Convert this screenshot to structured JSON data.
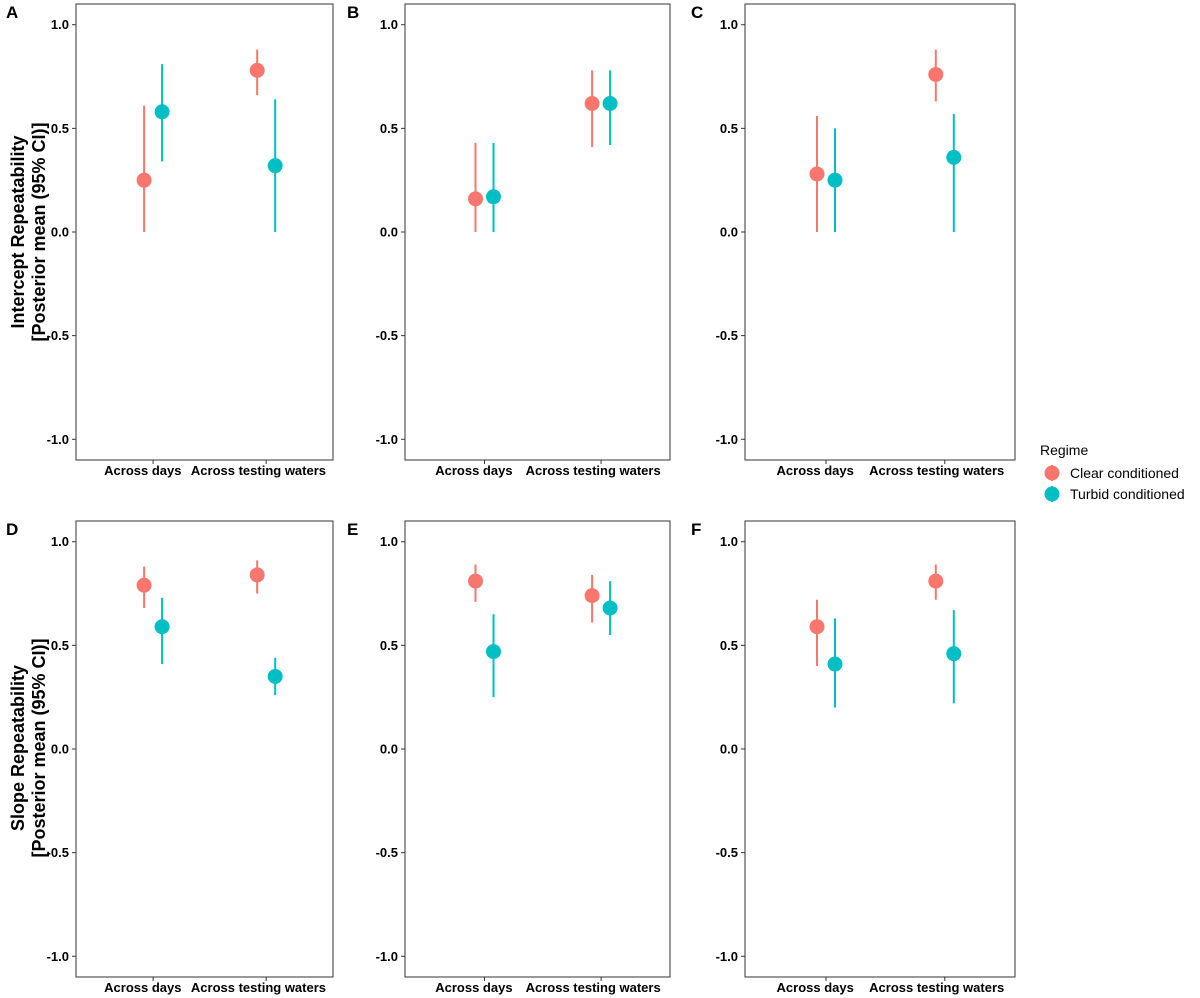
{
  "legend": {
    "title": "Regime",
    "entries": [
      {
        "name": "Clear conditioned",
        "color": "#F8766D"
      },
      {
        "name": "Turbid conditioned",
        "color": "#00BFC4"
      }
    ]
  },
  "y_titles": [
    {
      "row": 0,
      "line1": "Intercept Repeatability",
      "line2": "[Posterior mean (95% CI)]"
    },
    {
      "row": 1,
      "line1": "Slope Repeatability",
      "line2": "[Posterior mean (95% CI)]"
    }
  ],
  "chart_data": [
    {
      "panel": "A",
      "type": "scatter",
      "ylim": [
        -1.1,
        1.1
      ],
      "yticks": [
        -1.0,
        -0.5,
        0.0,
        0.5,
        1.0
      ],
      "ytick_labels": [
        "-1.0",
        "-0.5",
        "0.0",
        "0.5",
        "1.0"
      ],
      "categories": [
        "Across days",
        "Across testing waters"
      ],
      "series": [
        {
          "name": "Clear conditioned",
          "values": [
            0.25,
            0.78
          ],
          "lower": [
            0.0,
            0.66
          ],
          "upper": [
            0.61,
            0.88
          ]
        },
        {
          "name": "Turbid conditioned",
          "values": [
            0.58,
            0.32
          ],
          "lower": [
            0.34,
            0.0
          ],
          "upper": [
            0.81,
            0.64
          ]
        }
      ]
    },
    {
      "panel": "B",
      "type": "scatter",
      "ylim": [
        -1.1,
        1.1
      ],
      "yticks": [
        -1.0,
        -0.5,
        0.0,
        0.5,
        1.0
      ],
      "ytick_labels": [
        "-1.0",
        "-0.5",
        "0.0",
        "0.5",
        "1.0"
      ],
      "categories": [
        "Across days",
        "Across testing waters"
      ],
      "series": [
        {
          "name": "Clear conditioned",
          "values": [
            0.16,
            0.62
          ],
          "lower": [
            0.0,
            0.41
          ],
          "upper": [
            0.43,
            0.78
          ]
        },
        {
          "name": "Turbid conditioned",
          "values": [
            0.17,
            0.62
          ],
          "lower": [
            0.0,
            0.42
          ],
          "upper": [
            0.43,
            0.78
          ]
        }
      ]
    },
    {
      "panel": "C",
      "type": "scatter",
      "ylim": [
        -1.1,
        1.1
      ],
      "yticks": [
        -1.0,
        -0.5,
        0.0,
        0.5,
        1.0
      ],
      "ytick_labels": [
        "-1.0",
        "-0.5",
        "0.0",
        "0.5",
        "1.0"
      ],
      "categories": [
        "Across days",
        "Across testing waters"
      ],
      "series": [
        {
          "name": "Clear conditioned",
          "values": [
            0.28,
            0.76
          ],
          "lower": [
            0.0,
            0.63
          ],
          "upper": [
            0.56,
            0.88
          ]
        },
        {
          "name": "Turbid conditioned",
          "values": [
            0.25,
            0.36
          ],
          "lower": [
            0.0,
            0.0
          ],
          "upper": [
            0.5,
            0.57
          ]
        }
      ]
    },
    {
      "panel": "D",
      "type": "scatter",
      "ylim": [
        -1.1,
        1.1
      ],
      "yticks": [
        -1.0,
        -0.5,
        0.0,
        0.5,
        1.0
      ],
      "ytick_labels": [
        "-1.0",
        "-0.5",
        "0.0",
        "0.5",
        "1.0"
      ],
      "categories": [
        "Across days",
        "Across testing waters"
      ],
      "series": [
        {
          "name": "Clear conditioned",
          "values": [
            0.79,
            0.84
          ],
          "lower": [
            0.68,
            0.75
          ],
          "upper": [
            0.88,
            0.91
          ]
        },
        {
          "name": "Turbid conditioned",
          "values": [
            0.59,
            0.35
          ],
          "lower": [
            0.41,
            0.26
          ],
          "upper": [
            0.73,
            0.44
          ]
        }
      ]
    },
    {
      "panel": "E",
      "type": "scatter",
      "ylim": [
        -1.1,
        1.1
      ],
      "yticks": [
        -1.0,
        -0.5,
        0.0,
        0.5,
        1.0
      ],
      "ytick_labels": [
        "-1.0",
        "-0.5",
        "0.0",
        "0.5",
        "1.0"
      ],
      "categories": [
        "Across days",
        "Across testing waters"
      ],
      "series": [
        {
          "name": "Clear conditioned",
          "values": [
            0.81,
            0.74
          ],
          "lower": [
            0.71,
            0.61
          ],
          "upper": [
            0.89,
            0.84
          ]
        },
        {
          "name": "Turbid conditioned",
          "values": [
            0.47,
            0.68
          ],
          "lower": [
            0.25,
            0.55
          ],
          "upper": [
            0.65,
            0.81
          ]
        }
      ]
    },
    {
      "panel": "F",
      "type": "scatter",
      "ylim": [
        -1.1,
        1.1
      ],
      "yticks": [
        -1.0,
        -0.5,
        0.0,
        0.5,
        1.0
      ],
      "ytick_labels": [
        "-1.0",
        "-0.5",
        "0.0",
        "0.5",
        "1.0"
      ],
      "categories": [
        "Across days",
        "Across testing waters"
      ],
      "series": [
        {
          "name": "Clear conditioned",
          "values": [
            0.59,
            0.81
          ],
          "lower": [
            0.4,
            0.72
          ],
          "upper": [
            0.72,
            0.89
          ]
        },
        {
          "name": "Turbid conditioned",
          "values": [
            0.41,
            0.46
          ],
          "lower": [
            0.2,
            0.22
          ],
          "upper": [
            0.63,
            0.67
          ]
        }
      ]
    }
  ]
}
